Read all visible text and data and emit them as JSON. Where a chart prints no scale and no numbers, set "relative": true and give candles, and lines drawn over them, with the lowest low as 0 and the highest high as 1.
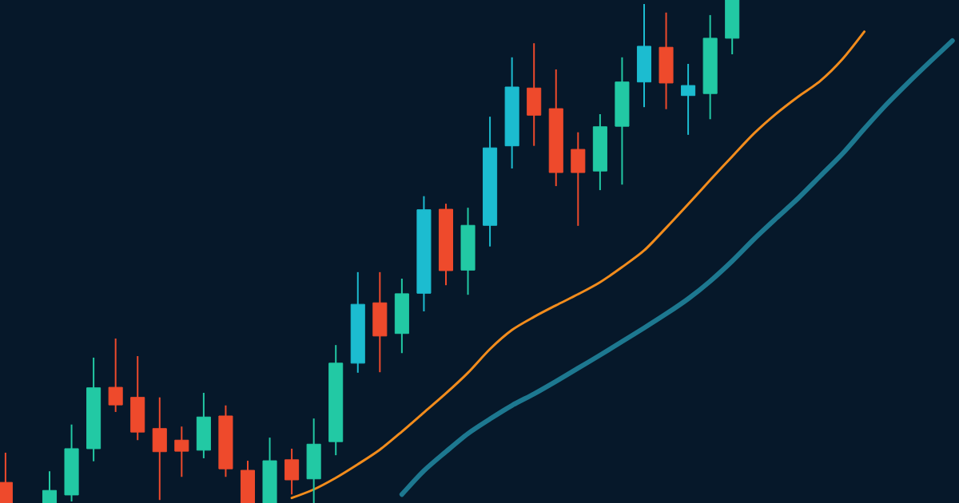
{
  "chart_data": {
    "type": "candlestick",
    "relative": true,
    "categories": [
      null,
      null,
      null,
      null,
      null,
      null,
      null,
      null,
      null,
      null,
      null,
      null,
      null,
      null,
      null,
      null,
      null,
      null,
      null,
      null,
      null,
      null,
      null,
      null,
      null,
      null,
      null,
      null,
      null,
      null,
      null,
      null,
      null,
      null,
      null,
      null,
      null,
      null,
      null,
      null,
      null,
      null,
      null,
      null
    ],
    "ohlc": [
      [
        0.041,
        0.1,
        0,
        0
      ],
      null,
      [
        0,
        0.063,
        0,
        0.025
      ],
      [
        0.016,
        0.156,
        0.003,
        0.108
      ],
      [
        0.108,
        0.289,
        0.083,
        0.229
      ],
      [
        0.23,
        0.327,
        0.181,
        0.195
      ],
      [
        0.21,
        0.292,
        0.125,
        0.141
      ],
      [
        0.148,
        0.21,
        0.006,
        0.102
      ],
      [
        0.125,
        0.152,
        0.052,
        0.103
      ],
      [
        0.105,
        0.219,
        0.089,
        0.171
      ],
      [
        0.173,
        0.194,
        0.052,
        0.068
      ],
      [
        0.065,
        0.084,
        0,
        0
      ],
      [
        0,
        0.13,
        0,
        0.084
      ],
      [
        0.086,
        0.108,
        0.017,
        0.046
      ],
      [
        0.048,
        0.168,
        0,
        0.117
      ],
      [
        0.122,
        0.314,
        0.095,
        0.278
      ],
      [
        0.278,
        0.459,
        0.259,
        0.395
      ],
      [
        0.398,
        0.459,
        0.26,
        0.332
      ],
      [
        0.337,
        0.446,
        0.298,
        0.416
      ],
      [
        0.417,
        0.61,
        0.381,
        0.583
      ],
      [
        0.584,
        0.595,
        0.433,
        0.462
      ],
      [
        0.463,
        0.587,
        0.414,
        0.552
      ],
      [
        0.552,
        0.768,
        0.51,
        0.706
      ],
      [
        0.71,
        0.886,
        0.665,
        0.827
      ],
      [
        0.825,
        0.914,
        0.71,
        0.771
      ],
      [
        0.784,
        0.862,
        0.63,
        0.657
      ],
      [
        0.703,
        0.737,
        0.551,
        0.657
      ],
      [
        0.66,
        0.773,
        0.622,
        0.748
      ],
      [
        0.749,
        0.886,
        0.633,
        0.837
      ],
      [
        0.837,
        0.992,
        0.787,
        0.908
      ],
      [
        0.906,
        0.975,
        0.783,
        0.835
      ],
      [
        0.81,
        0.873,
        0.732,
        0.83
      ],
      [
        0.814,
        0.97,
        0.763,
        0.924
      ],
      [
        0.924,
        1,
        0.892,
        1
      ],
      null,
      null,
      null,
      null,
      null,
      null,
      null,
      null,
      null,
      null
    ],
    "colors": [
      "#ee4a2c",
      null,
      "#22c9a4",
      "#22c9a4",
      "#22c9a4",
      "#ee4a2c",
      "#ee4a2c",
      "#ee4a2c",
      "#ee4a2c",
      "#22c9a4",
      "#ee4a2c",
      "#ee4a2c",
      "#22c9a4",
      "#ee4a2c",
      "#22c9a4",
      "#22c9a4",
      "#1cbcd0",
      "#ee4a2c",
      "#22c9a4",
      "#1cbcd0",
      "#ee4a2c",
      "#22c9a4",
      "#1cbcd0",
      "#1cbcd0",
      "#ee4a2c",
      "#ee4a2c",
      "#ee4a2c",
      "#22c9a4",
      "#22c9a4",
      "#1cbcd0",
      "#ee4a2c",
      "#1cbcd0",
      "#22c9a4",
      "#22c9a4",
      null,
      null,
      null,
      null,
      null,
      null,
      null,
      null,
      null,
      null
    ],
    "series": [
      {
        "type": "line",
        "color": "#f28c1c",
        "values": [
          null,
          null,
          null,
          null,
          null,
          null,
          null,
          null,
          null,
          null,
          null,
          null,
          null,
          0.01,
          0.027,
          0.05,
          0.077,
          0.106,
          0.142,
          0.18,
          0.218,
          0.259,
          0.306,
          0.344,
          0.37,
          0.393,
          0.415,
          0.439,
          0.469,
          0.502,
          0.547,
          0.594,
          0.642,
          0.689,
          0.735,
          0.774,
          0.808,
          0.839,
          0.882,
          0.937,
          null,
          null,
          null,
          null
        ]
      },
      {
        "type": "line",
        "color": "#1d7890",
        "values": [
          null,
          null,
          null,
          null,
          null,
          null,
          null,
          null,
          null,
          null,
          null,
          null,
          null,
          null,
          null,
          null,
          null,
          null,
          0.017,
          0.064,
          0.102,
          0.138,
          0.167,
          0.194,
          0.217,
          0.242,
          0.268,
          0.294,
          0.321,
          0.348,
          0.376,
          0.406,
          0.441,
          0.481,
          0.525,
          0.566,
          0.606,
          0.65,
          0.694,
          0.744,
          0.792,
          0.836,
          0.878,
          0.919
        ]
      }
    ]
  }
}
